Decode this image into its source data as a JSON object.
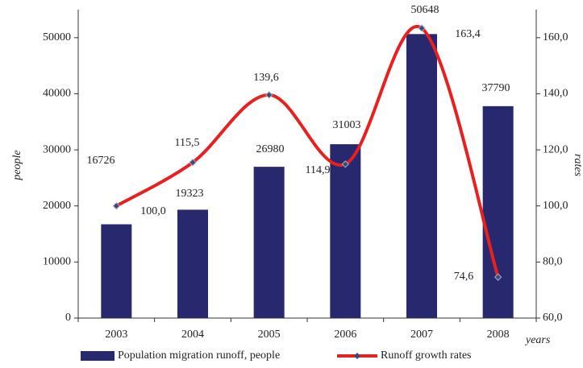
{
  "chart_data": {
    "type": "bar_line",
    "categories": [
      "2003",
      "2004",
      "2005",
      "2006",
      "2007",
      "2008"
    ],
    "series": [
      {
        "name": "Population migration runoff, people",
        "color": "#27286e",
        "type": "bar",
        "values": [
          16726,
          19323,
          26980,
          31003,
          50648,
          37790
        ]
      },
      {
        "name": "Runoff growth rates",
        "color": "#e8201f",
        "type": "line",
        "axis": "y2",
        "values": [
          100.0,
          115.5,
          139.6,
          114.9,
          163.4,
          74.6
        ],
        "value_labels": [
          "100,0",
          "115,5",
          "139,6",
          "114,9",
          "163,4",
          "74,6"
        ]
      }
    ],
    "ylabel": "people",
    "y2label": "rates",
    "xlabel": "years",
    "ylim": [
      0,
      55000
    ],
    "yticks": [
      0,
      10000,
      20000,
      30000,
      40000,
      50000
    ],
    "y2lim": [
      60,
      170
    ],
    "y2ticks": [
      {
        "value": 60,
        "label": "60,0"
      },
      {
        "value": 80,
        "label": "80,0"
      },
      {
        "value": 100,
        "label": "100,0"
      },
      {
        "value": 120,
        "label": "120,0"
      },
      {
        "value": 140,
        "label": "140,0"
      },
      {
        "value": 160,
        "label": "160,0"
      }
    ],
    "legend": "bottom"
  }
}
